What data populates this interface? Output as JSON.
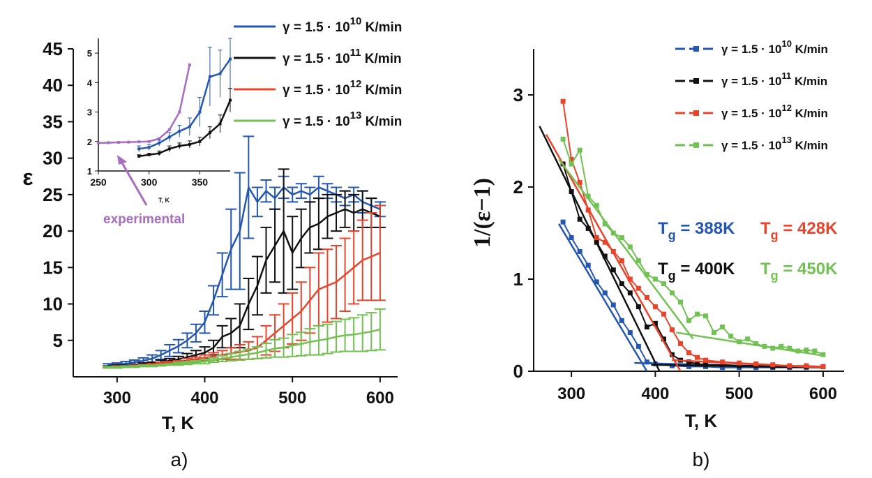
{
  "panels": {
    "a": "a)",
    "b": "b)"
  },
  "legend": [
    {
      "prefix": "γ = 1.5 · 10",
      "exp": "10",
      "suffix": " K/min",
      "color": "#2457b0"
    },
    {
      "prefix": "γ = 1.5 · 10",
      "exp": "11",
      "suffix": " K/min",
      "color": "#111111"
    },
    {
      "prefix": "γ = 1.5 · 10",
      "exp": "12",
      "suffix": " K/min",
      "color": "#e8442b"
    },
    {
      "prefix": "γ = 1.5 · 10",
      "exp": "13",
      "suffix": " K/min",
      "color": "#72c153"
    }
  ],
  "inset": {
    "xlabel": "T, K",
    "xticks": [
      "250",
      "300",
      "350"
    ],
    "yticks": [
      "1",
      "2",
      "3",
      "4",
      "5"
    ],
    "annotation": "experimental",
    "annotation_color": "#a86cc1"
  },
  "tg_labels": [
    {
      "prefix": "T",
      "sub": "g",
      "value": " = 388K",
      "color": "#2457b0"
    },
    {
      "prefix": "T",
      "sub": "g",
      "value": " = 428K",
      "color": "#e8442b"
    },
    {
      "prefix": "T",
      "sub": "g",
      "value": " = 400K",
      "color": "#111111"
    },
    {
      "prefix": "T",
      "sub": "g",
      "value": " = 450K",
      "color": "#72c153"
    }
  ],
  "chart_data": [
    {
      "type": "line",
      "panel": "a",
      "xlabel": "T, K",
      "ylabel": "ε",
      "xlim": [
        250,
        620
      ],
      "ylim": [
        0,
        45
      ],
      "xticks": [
        300,
        400,
        500,
        600
      ],
      "yticks": [
        5,
        10,
        15,
        20,
        25,
        30,
        35,
        40,
        45
      ],
      "error_bars": true,
      "series": [
        {
          "name": "γ = 1.5 · 10^10 K/min",
          "color": "#2457b0",
          "x": [
            290,
            300,
            310,
            320,
            330,
            340,
            350,
            360,
            370,
            380,
            390,
            400,
            410,
            420,
            430,
            440,
            450,
            460,
            470,
            480,
            490,
            500,
            510,
            520,
            530,
            540,
            550,
            560,
            570,
            580,
            590,
            600
          ],
          "y": [
            1.6,
            1.7,
            1.8,
            2.0,
            2.2,
            2.5,
            3.0,
            3.6,
            4.2,
            5.0,
            6.0,
            7.5,
            10.5,
            14.0,
            17.5,
            20.0,
            26.0,
            24.0,
            25.5,
            24.5,
            26.0,
            25.0,
            25.5,
            25.0,
            26.0,
            25.5,
            25.0,
            24.5,
            25.0,
            24.0,
            23.5,
            23.0
          ],
          "err": [
            0.2,
            0.2,
            0.3,
            0.3,
            0.4,
            0.5,
            0.6,
            0.8,
            0.9,
            1.0,
            1.2,
            1.5,
            2.0,
            3.0,
            5.5,
            8.0,
            7.0,
            2.0,
            1.5,
            1.5,
            1.5,
            1.0,
            1.0,
            1.0,
            1.5,
            1.0,
            1.0,
            1.0,
            1.0,
            1.5,
            1.0,
            1.0
          ]
        },
        {
          "name": "γ = 1.5 · 10^11 K/min",
          "color": "#111111",
          "x": [
            290,
            300,
            310,
            320,
            330,
            340,
            350,
            360,
            370,
            380,
            390,
            400,
            410,
            420,
            430,
            440,
            450,
            460,
            470,
            480,
            490,
            500,
            510,
            520,
            530,
            540,
            550,
            560,
            570,
            580,
            590,
            600
          ],
          "y": [
            1.4,
            1.5,
            1.5,
            1.6,
            1.7,
            1.8,
            2.0,
            2.2,
            2.4,
            2.7,
            3.0,
            3.3,
            4.0,
            5.5,
            6.0,
            7.0,
            10.0,
            12.5,
            16.0,
            18.0,
            20.0,
            17.0,
            19.0,
            20.5,
            21.0,
            22.0,
            22.5,
            23.0,
            22.5,
            23.0,
            22.5,
            22.0
          ],
          "err": [
            0.1,
            0.1,
            0.1,
            0.1,
            0.2,
            0.2,
            0.3,
            0.3,
            0.4,
            0.5,
            0.6,
            0.8,
            1.0,
            1.5,
            2.0,
            3.0,
            3.5,
            4.0,
            4.5,
            5.0,
            8.5,
            5.0,
            4.0,
            3.5,
            3.5,
            3.0,
            2.5,
            2.5,
            2.5,
            2.5,
            2.0,
            1.5
          ]
        },
        {
          "name": "γ = 1.5 · 10^12 K/min",
          "color": "#e8442b",
          "x": [
            290,
            300,
            310,
            320,
            330,
            340,
            350,
            360,
            370,
            380,
            390,
            400,
            410,
            420,
            430,
            440,
            450,
            460,
            470,
            480,
            490,
            500,
            510,
            520,
            530,
            540,
            550,
            560,
            570,
            580,
            590,
            600
          ],
          "y": [
            1.3,
            1.4,
            1.4,
            1.5,
            1.6,
            1.7,
            1.8,
            1.9,
            2.0,
            2.2,
            2.4,
            2.6,
            2.8,
            3.0,
            3.2,
            3.4,
            3.6,
            4.0,
            5.0,
            6.0,
            7.0,
            8.0,
            9.0,
            10.5,
            12.0,
            12.5,
            13.0,
            14.0,
            15.0,
            16.0,
            16.5,
            17.0
          ],
          "err": [
            0.1,
            0.1,
            0.1,
            0.1,
            0.1,
            0.1,
            0.2,
            0.2,
            0.2,
            0.3,
            0.3,
            0.4,
            0.5,
            0.6,
            0.8,
            1.0,
            1.2,
            1.5,
            2.0,
            2.5,
            3.0,
            3.5,
            4.0,
            4.5,
            5.0,
            5.0,
            5.0,
            5.0,
            5.0,
            5.5,
            6.0,
            6.5
          ]
        },
        {
          "name": "γ = 1.5 · 10^13 K/min",
          "color": "#72c153",
          "x": [
            290,
            300,
            310,
            320,
            330,
            340,
            350,
            360,
            370,
            380,
            390,
            400,
            410,
            420,
            430,
            440,
            450,
            460,
            470,
            480,
            490,
            500,
            510,
            520,
            530,
            540,
            550,
            560,
            570,
            580,
            590,
            600
          ],
          "y": [
            1.3,
            1.3,
            1.4,
            1.4,
            1.5,
            1.5,
            1.6,
            1.7,
            1.8,
            1.9,
            2.0,
            2.1,
            2.3,
            2.5,
            2.7,
            2.9,
            3.1,
            3.3,
            3.6,
            3.9,
            4.0,
            4.3,
            4.5,
            4.8,
            5.0,
            5.2,
            5.5,
            5.7,
            5.8,
            6.0,
            6.2,
            6.5
          ],
          "err": [
            0.1,
            0.1,
            0.1,
            0.1,
            0.1,
            0.1,
            0.1,
            0.1,
            0.2,
            0.2,
            0.2,
            0.3,
            0.3,
            0.4,
            0.5,
            0.6,
            0.7,
            0.8,
            1.0,
            1.2,
            1.3,
            1.5,
            1.6,
            1.8,
            2.0,
            2.0,
            2.1,
            2.2,
            2.3,
            2.5,
            2.6,
            2.8
          ]
        }
      ]
    },
    {
      "type": "line",
      "panel": "a-inset",
      "xlabel": "T, K",
      "xlim": [
        250,
        380
      ],
      "ylim": [
        1,
        5.5
      ],
      "series": [
        {
          "name": "experimental",
          "color": "#a86cc1",
          "x": [
            250,
            260,
            270,
            280,
            290,
            300,
            310,
            320,
            330,
            340
          ],
          "y": [
            1.95,
            1.96,
            1.97,
            1.98,
            1.99,
            2.0,
            2.1,
            2.4,
            3.0,
            4.6
          ]
        },
        {
          "name": "γ = 1.5 · 10^10 K/min",
          "color": "#2457b0",
          "x": [
            290,
            300,
            310,
            320,
            330,
            340,
            350,
            360,
            370,
            380
          ],
          "y": [
            1.75,
            1.8,
            1.95,
            2.15,
            2.35,
            2.5,
            3.0,
            4.2,
            4.3,
            4.8
          ],
          "err": [
            0.1,
            0.1,
            0.1,
            0.15,
            0.2,
            0.3,
            0.5,
            1.0,
            0.8,
            1.0
          ]
        },
        {
          "name": "γ = 1.5 · 10^11 K/min",
          "color": "#111111",
          "x": [
            290,
            300,
            310,
            320,
            330,
            340,
            350,
            360,
            370,
            380
          ],
          "y": [
            1.5,
            1.55,
            1.6,
            1.75,
            1.85,
            1.9,
            2.0,
            2.3,
            2.6,
            3.4
          ],
          "err": [
            0.05,
            0.05,
            0.08,
            0.1,
            0.1,
            0.12,
            0.15,
            0.2,
            0.3,
            0.4
          ]
        }
      ]
    },
    {
      "type": "line",
      "panel": "b",
      "xlabel": "T, K",
      "ylabel": "1/(ε−1)",
      "xlim": [
        255,
        625
      ],
      "ylim": [
        0,
        3.5
      ],
      "xticks": [
        300,
        400,
        500,
        600
      ],
      "yticks": [
        0,
        1,
        2,
        3
      ],
      "series": [
        {
          "name": "γ = 1.5 · 10^10 K/min",
          "color": "#2457b0",
          "x": [
            290,
            300,
            310,
            320,
            330,
            340,
            350,
            360,
            370,
            380,
            390,
            400,
            420,
            440,
            460,
            480,
            500,
            520,
            540,
            560,
            580,
            600
          ],
          "y": [
            1.62,
            1.45,
            1.3,
            1.15,
            0.97,
            0.85,
            0.72,
            0.55,
            0.42,
            0.27,
            0.1,
            0.08,
            0.06,
            0.05,
            0.05,
            0.04,
            0.04,
            0.04,
            0.04,
            0.04,
            0.04,
            0.05
          ],
          "fit": [
            [
              285,
              1.6
            ],
            [
              390,
              0.0
            ],
            [
              375,
              0.09
            ],
            [
              600,
              0.04
            ]
          ]
        },
        {
          "name": "γ = 1.5 · 10^11 K/min",
          "color": "#111111",
          "x": [
            290,
            300,
            310,
            320,
            330,
            340,
            350,
            360,
            370,
            380,
            390,
            400,
            410,
            420,
            430,
            440,
            450,
            460,
            480,
            500,
            520,
            540,
            560,
            580,
            600
          ],
          "y": [
            2.25,
            1.95,
            1.65,
            1.55,
            1.4,
            1.25,
            1.1,
            0.95,
            0.85,
            0.7,
            0.48,
            0.52,
            0.35,
            0.18,
            0.12,
            0.1,
            0.08,
            0.07,
            0.07,
            0.06,
            0.06,
            0.05,
            0.05,
            0.05,
            0.05
          ],
          "fit": [
            [
              262,
              2.66
            ],
            [
              405,
              0.0
            ],
            [
              395,
              0.07
            ],
            [
              600,
              0.04
            ]
          ]
        },
        {
          "name": "γ = 1.5 · 10^12 K/min",
          "color": "#e8442b",
          "x": [
            290,
            300,
            310,
            320,
            330,
            340,
            350,
            360,
            370,
            380,
            390,
            400,
            410,
            420,
            430,
            440,
            450,
            460,
            480,
            500,
            520,
            540,
            560,
            580,
            600
          ],
          "y": [
            2.93,
            2.3,
            2.05,
            1.75,
            1.45,
            1.4,
            1.3,
            1.2,
            1.0,
            0.9,
            0.8,
            0.7,
            0.62,
            0.45,
            0.3,
            0.2,
            0.15,
            0.12,
            0.1,
            0.09,
            0.08,
            0.07,
            0.06,
            0.06,
            0.05
          ],
          "fit": [
            [
              270,
              2.57
            ],
            [
              430,
              0.0
            ],
            [
              420,
              0.12
            ],
            [
              600,
              0.04
            ]
          ]
        },
        {
          "name": "γ = 1.5 · 10^13 K/min",
          "color": "#72c153",
          "x": [
            290,
            300,
            310,
            320,
            330,
            340,
            350,
            360,
            370,
            380,
            390,
            400,
            410,
            420,
            430,
            440,
            450,
            460,
            470,
            480,
            490,
            500,
            510,
            520,
            530,
            540,
            550,
            560,
            570,
            580,
            590,
            600
          ],
          "y": [
            2.52,
            2.25,
            2.4,
            1.9,
            1.8,
            1.6,
            1.5,
            1.45,
            1.35,
            1.2,
            1.05,
            1.0,
            0.95,
            0.85,
            0.75,
            0.55,
            0.62,
            0.6,
            0.42,
            0.48,
            0.38,
            0.32,
            0.35,
            0.3,
            0.27,
            0.25,
            0.27,
            0.25,
            0.22,
            0.23,
            0.22,
            0.18
          ],
          "fit": [
            [
              285,
              2.3
            ],
            [
              445,
              0.35
            ],
            [
              425,
              0.42
            ],
            [
              600,
              0.17
            ]
          ]
        }
      ]
    }
  ]
}
